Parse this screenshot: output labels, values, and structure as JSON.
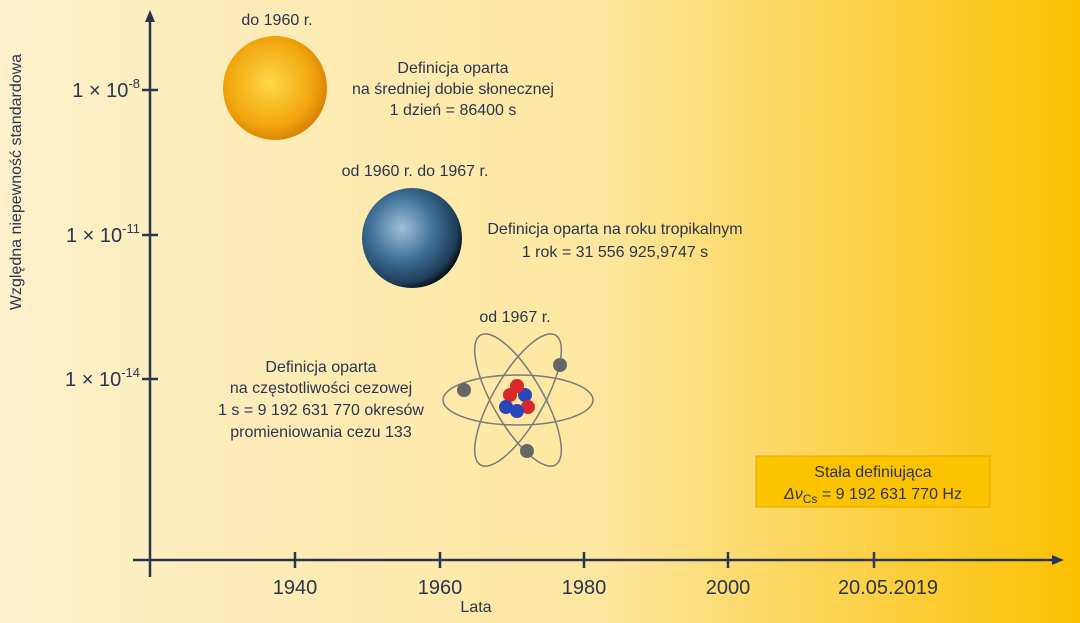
{
  "axes": {
    "y_label": "Względna niepewność standardowa",
    "x_label": "Lata",
    "y_ticks": [
      {
        "base": "1 × 10",
        "exp": "-8"
      },
      {
        "base": "1 × 10",
        "exp": "-11"
      },
      {
        "base": "1 × 10",
        "exp": "-14"
      }
    ],
    "x_ticks": [
      "1940",
      "1960",
      "1980",
      "2000",
      "20.05.2019"
    ]
  },
  "eras": [
    {
      "period": "do 1960 r.",
      "lines": [
        "Definicja oparta",
        "na średniej dobie słonecznej",
        "1 dzień = 86400 s"
      ]
    },
    {
      "period": "od 1960 r. do 1967 r.",
      "lines": [
        "Definicja oparta na roku tropikalnym",
        "1 rok = 31 556 925,9747 s"
      ]
    },
    {
      "period": "od 1967 r.",
      "lines": [
        "Definicja oparta",
        "na częstotliwości cezowej",
        "1 s = 9 192 631 770 okresów",
        "promieniowania cezu 133"
      ]
    }
  ],
  "constant_box": {
    "title": "Stała definiująca",
    "symbol": "Δν",
    "subscript": "Cs",
    "value": " = 9 192 631 770 Hz"
  }
}
